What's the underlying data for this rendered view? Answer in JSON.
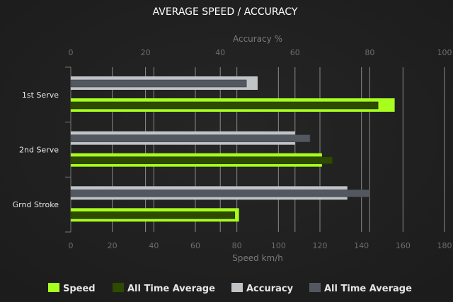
{
  "chart_data": {
    "type": "bar",
    "orientation": "horizontal",
    "title": "AVERAGE SPEED / ACCURACY",
    "categories": [
      "1st Serve",
      "2nd Serve",
      "Grnd Stroke"
    ],
    "top_axis": {
      "label": "Accuracy %",
      "range": [
        0,
        100
      ],
      "ticks": [
        0,
        20,
        40,
        60,
        80,
        100
      ]
    },
    "bottom_axis": {
      "label": "Speed km/h",
      "range": [
        0,
        180
      ],
      "ticks": [
        0,
        20,
        40,
        60,
        80,
        100,
        120,
        140,
        160,
        180
      ]
    },
    "grid": true,
    "legend_position": "bottom",
    "series": [
      {
        "name": "Speed",
        "axis": "bottom",
        "color": "#a8ff1e",
        "values": [
          156,
          121,
          81
        ]
      },
      {
        "name": "All Time Average",
        "axis": "bottom",
        "color": "#2d4a00",
        "values": [
          148,
          126,
          79
        ]
      },
      {
        "name": "Accuracy",
        "axis": "top",
        "color": "#c0c4c6",
        "values": [
          50,
          60,
          74
        ]
      },
      {
        "name": "All Time Average",
        "axis": "top",
        "color": "#535860",
        "values": [
          47,
          64,
          80
        ]
      }
    ]
  }
}
